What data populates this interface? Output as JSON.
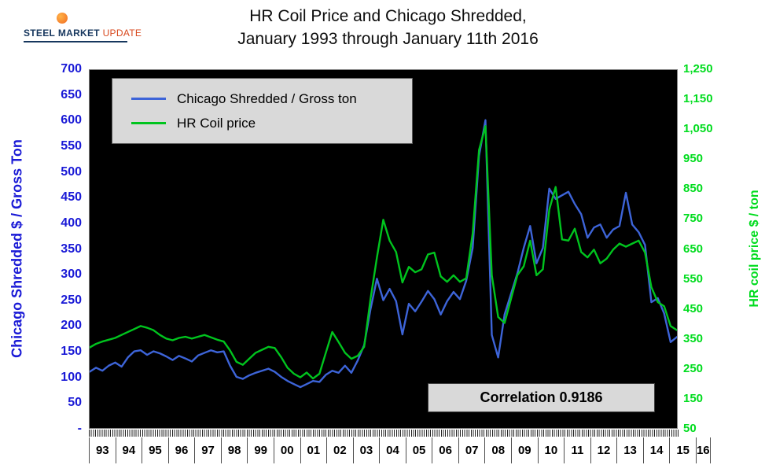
{
  "logo": {
    "steel": "STEEL",
    "market": "MARKET",
    "update": "UPDATE"
  },
  "title": {
    "line1": "HR Coil Price and Chicago Shredded,",
    "line2": "January 1993 through January 11th 2016"
  },
  "left_axis": {
    "title": "Chicago Shredded $ / Gross Ton",
    "color": "#1a1ad6",
    "ticks": [
      "700",
      "650",
      "600",
      "550",
      "500",
      "450",
      "400",
      "350",
      "300",
      "250",
      "200",
      "150",
      "100",
      "50",
      "-"
    ]
  },
  "right_axis": {
    "title": "HR coil price $ / ton",
    "color": "#00dc1e",
    "ticks": [
      "1,250",
      "1,150",
      "1,050",
      "950",
      "850",
      "750",
      "650",
      "550",
      "450",
      "350",
      "250",
      "150",
      "50"
    ]
  },
  "x_axis": {
    "years": [
      "93",
      "94",
      "95",
      "96",
      "97",
      "98",
      "99",
      "00",
      "01",
      "02",
      "03",
      "04",
      "05",
      "06",
      "07",
      "08",
      "09",
      "10",
      "11",
      "12",
      "13",
      "14",
      "15",
      "16"
    ]
  },
  "legend": {
    "items": [
      {
        "label": "Chicago Shredded / Gross ton",
        "color": "#3d64d8"
      },
      {
        "label": "HR Coil price",
        "color": "#00c41e"
      }
    ]
  },
  "correlation_label": "Correlation 0.9186",
  "chart_data": {
    "type": "line",
    "title": "HR Coil Price and Chicago Shredded, January 1993 through January 11th 2016",
    "background": "#000000",
    "grid": false,
    "legend_position": "top-left",
    "annotations": [
      "Correlation 0.9186"
    ],
    "left_axis_label": "Chicago Shredded $ / Gross Ton",
    "right_axis_label": "HR coil price $ / ton",
    "left_axis_range": [
      0,
      700
    ],
    "right_axis_range": [
      50,
      1250
    ],
    "x_range": [
      1993,
      2016
    ],
    "x": [
      1993,
      1993.25,
      1993.5,
      1993.75,
      1994,
      1994.25,
      1994.5,
      1994.75,
      1995,
      1995.25,
      1995.5,
      1995.75,
      1996,
      1996.25,
      1996.5,
      1996.75,
      1997,
      1997.25,
      1997.5,
      1997.75,
      1998,
      1998.25,
      1998.5,
      1998.75,
      1999,
      1999.25,
      1999.5,
      1999.75,
      2000,
      2000.25,
      2000.5,
      2000.75,
      2001,
      2001.25,
      2001.5,
      2001.75,
      2002,
      2002.25,
      2002.5,
      2002.75,
      2003,
      2003.25,
      2003.5,
      2003.75,
      2004,
      2004.25,
      2004.5,
      2004.75,
      2005,
      2005.25,
      2005.5,
      2005.75,
      2006,
      2006.25,
      2006.5,
      2006.75,
      2007,
      2007.25,
      2007.5,
      2007.75,
      2008,
      2008.25,
      2008.5,
      2008.75,
      2009,
      2009.25,
      2009.5,
      2009.75,
      2010,
      2010.25,
      2010.5,
      2010.75,
      2011,
      2011.25,
      2011.5,
      2011.75,
      2012,
      2012.25,
      2012.5,
      2012.75,
      2013,
      2013.25,
      2013.5,
      2013.75,
      2014,
      2014.25,
      2014.5,
      2014.75,
      2015,
      2015.25,
      2015.5,
      2015.75,
      2016
    ],
    "series": [
      {
        "name": "Chicago Shredded / Gross ton",
        "axis": "left",
        "units": "$ / gross ton",
        "color": "#3d64d8",
        "data_name": "line-chicago-shredded",
        "values": [
          110,
          118,
          112,
          122,
          128,
          120,
          138,
          150,
          152,
          143,
          150,
          146,
          140,
          133,
          141,
          136,
          130,
          142,
          147,
          152,
          148,
          150,
          122,
          100,
          96,
          103,
          108,
          112,
          116,
          110,
          100,
          92,
          86,
          80,
          86,
          92,
          90,
          104,
          112,
          108,
          122,
          108,
          132,
          162,
          232,
          292,
          250,
          272,
          248,
          183,
          243,
          228,
          247,
          268,
          252,
          222,
          248,
          266,
          252,
          288,
          352,
          532,
          602,
          182,
          138,
          222,
          262,
          302,
          352,
          395,
          322,
          352,
          468,
          448,
          455,
          462,
          438,
          418,
          372,
          392,
          398,
          372,
          388,
          395,
          460,
          398,
          383,
          358,
          246,
          254,
          224,
          168,
          178
        ]
      },
      {
        "name": "HR Coil price",
        "axis": "right",
        "units": "$ / ton",
        "color": "#00c41e",
        "data_name": "line-hr-coil",
        "values": [
          320,
          332,
          340,
          346,
          352,
          362,
          372,
          382,
          392,
          386,
          378,
          362,
          350,
          344,
          352,
          356,
          350,
          356,
          362,
          354,
          346,
          340,
          310,
          272,
          262,
          282,
          302,
          312,
          322,
          318,
          288,
          252,
          232,
          220,
          236,
          216,
          232,
          302,
          372,
          338,
          302,
          282,
          292,
          322,
          482,
          622,
          748,
          678,
          640,
          538,
          590,
          572,
          582,
          632,
          638,
          558,
          540,
          562,
          540,
          552,
          702,
          982,
          1062,
          562,
          422,
          402,
          482,
          562,
          592,
          678,
          562,
          582,
          782,
          858,
          682,
          678,
          718,
          640,
          622,
          648,
          602,
          618,
          648,
          668,
          658,
          668,
          678,
          638,
          522,
          472,
          458,
          392,
          378
        ]
      }
    ]
  }
}
